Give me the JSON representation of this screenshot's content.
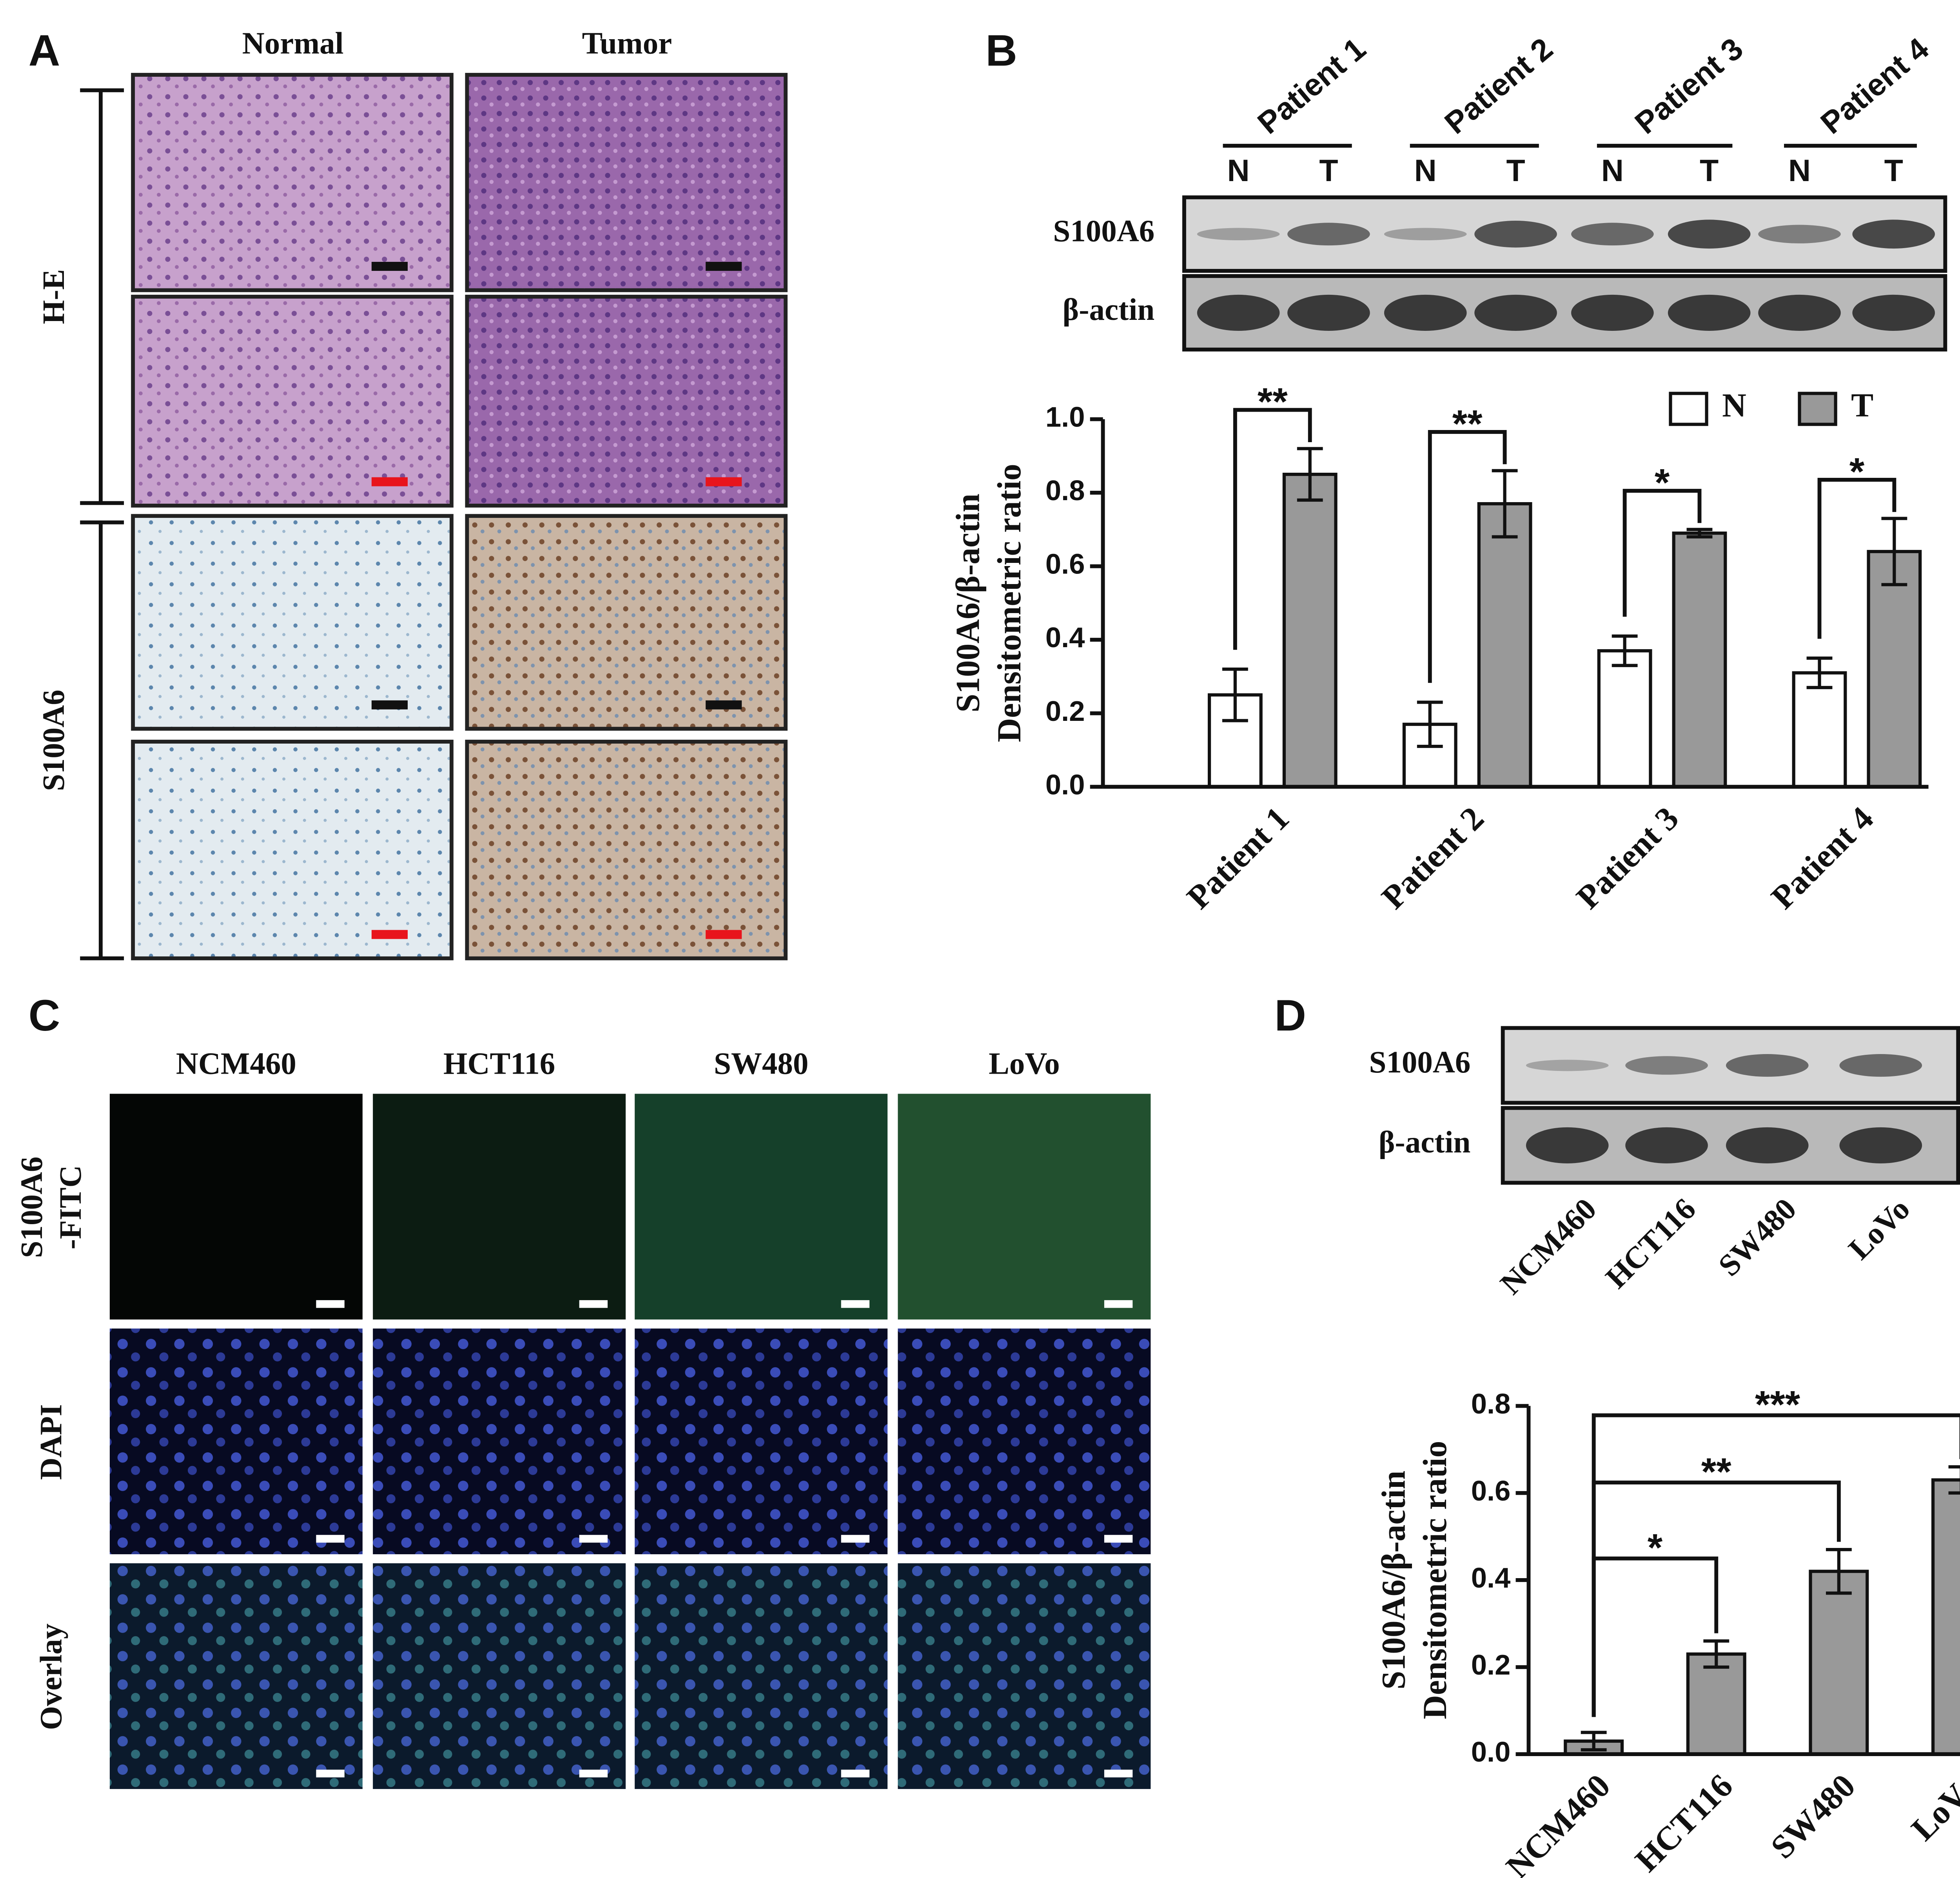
{
  "panel_a": {
    "label": "A",
    "columns": [
      "Normal",
      "Tumor"
    ],
    "rows": [
      "H-E",
      "S100A6"
    ]
  },
  "panel_b": {
    "label": "B",
    "blot_groups": [
      "Patient 1",
      "Patient 2",
      "Patient 3",
      "Patient 4"
    ],
    "lanes": [
      "N",
      "T",
      "N",
      "T",
      "N",
      "T",
      "N",
      "T"
    ],
    "blot_rows": [
      "S100A6",
      "β-actin"
    ]
  },
  "panel_c": {
    "label": "C",
    "columns": [
      "NCM460",
      "HCT116",
      "SW480",
      "LoVo"
    ],
    "rows": [
      [
        "S100A6",
        "-FITC"
      ],
      [
        "DAPI"
      ],
      [
        "Overlay"
      ]
    ]
  },
  "panel_d": {
    "label": "D",
    "blot_rows": [
      "S100A6",
      "β-actin"
    ],
    "lanes": [
      "NCM460",
      "HCT116",
      "SW480",
      "LoVo"
    ]
  },
  "chart_data": [
    {
      "type": "bar",
      "y_label": [
        "S100A6/β-actin",
        "Densitometric ratio"
      ],
      "categories": [
        "Patient 1",
        "Patient 2",
        "Patient 3",
        "Patient 4"
      ],
      "series": [
        {
          "name": "N",
          "color": "#ffffff",
          "values": [
            0.25,
            0.17,
            0.37,
            0.31
          ],
          "errors": [
            0.07,
            0.06,
            0.04,
            0.04
          ]
        },
        {
          "name": "T",
          "color": "#999999",
          "values": [
            0.85,
            0.77,
            0.69,
            0.64
          ],
          "errors": [
            0.07,
            0.09,
            0.01,
            0.09
          ]
        }
      ],
      "significance": [
        "**",
        "**",
        "*",
        "*"
      ],
      "ylim": [
        0,
        1.0
      ],
      "yticks": [
        {
          "value": 0,
          "label": "0.0"
        },
        0.2,
        0.4,
        0.6,
        0.8,
        {
          "value": 1.0,
          "label": "1.0"
        }
      ],
      "legend": "upper right"
    },
    {
      "type": "bar",
      "y_label": [
        "S100A6/β-actin",
        "Densitometric ratio"
      ],
      "categories": [
        "NCM460",
        "HCT116",
        "SW480",
        "LoVo"
      ],
      "values": [
        0.03,
        0.23,
        0.42,
        0.63
      ],
      "errors": [
        0.02,
        0.03,
        0.05,
        0.03
      ],
      "color": "#999999",
      "significance": [
        "*",
        "**",
        "***"
      ],
      "ylim": [
        0,
        0.8
      ],
      "yticks": [
        {
          "value": 0,
          "label": "0.0"
        },
        0.2,
        0.4,
        0.6,
        0.8
      ]
    }
  ]
}
